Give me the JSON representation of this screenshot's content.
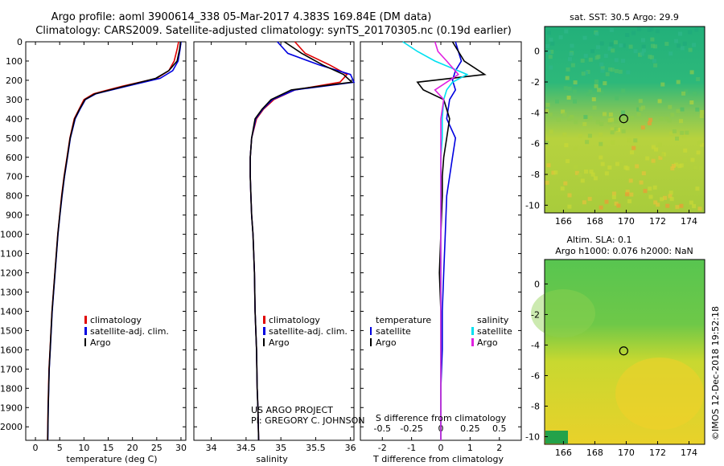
{
  "title_line1": "Argo profile: aoml 3900614_338 05-Mar-2017 4.383S 169.84E (DM data)",
  "title_line2": "Climatology: CARS2009. Satellite-adjusted climatology: synTS_20170305.nc (0.19d earlier)",
  "map_top_title": "sat. SST: 30.5 Argo: 29.9",
  "map_bottom_title1": "Altim. SLA: 0.1",
  "map_bottom_title2": "Argo h1000: 0.076 h2000: NaN",
  "credit_project": "US ARGO PROJECT",
  "credit_pi": "PI: GREGORY C. JOHNSON",
  "imos_stamp": "©IMOS 12-Dec-2018 19:52:18",
  "colors": {
    "climatology": "#e00000",
    "satellite": "#0000e0",
    "argo": "#000000",
    "sat_s": "#00e0f0",
    "argo_s": "#e020e0"
  },
  "chart_data": [
    {
      "type": "line",
      "xlabel": "temperature (deg C)",
      "xlim": [
        -2,
        31
      ],
      "ylim": [
        2070,
        0
      ],
      "xticks": [
        "0",
        "5",
        "10",
        "15",
        "20",
        "25",
        "30"
      ],
      "yticks": [
        "0",
        "100",
        "200",
        "300",
        "400",
        "500",
        "600",
        "700",
        "800",
        "900",
        "1000",
        "1100",
        "1200",
        "1300",
        "1400",
        "1500",
        "1600",
        "1700",
        "1800",
        "1900",
        "2000"
      ],
      "legend": [
        "climatology",
        "satellite-adj. clim.",
        "Argo"
      ],
      "series": [
        {
          "name": "climatology",
          "x": [
            29.5,
            29.2,
            28.6,
            27.5,
            25,
            18,
            12,
            10,
            9,
            8,
            7.1,
            6.5,
            5.9,
            5.4,
            5,
            4.6,
            4.3,
            4,
            3.7,
            3.4,
            3.2,
            3,
            2.8,
            2.7,
            2.6,
            2.5
          ],
          "y": [
            0,
            40,
            100,
            150,
            190,
            230,
            270,
            300,
            350,
            400,
            500,
            600,
            700,
            800,
            900,
            1000,
            1100,
            1200,
            1300,
            1400,
            1500,
            1600,
            1700,
            1800,
            1900,
            2070
          ]
        },
        {
          "name": "satellite-adj. clim.",
          "x": [
            30,
            29.8,
            29.4,
            28.3,
            25.7,
            19,
            12.5,
            10.3,
            9.2,
            8.2,
            7.2,
            6.6,
            6,
            5.5,
            5.05,
            4.65,
            4.35,
            4.05,
            3.75,
            3.45,
            3.25,
            3.05,
            2.85,
            2.75,
            2.65,
            2.55
          ],
          "y": [
            0,
            40,
            100,
            150,
            190,
            230,
            270,
            300,
            350,
            400,
            500,
            600,
            700,
            800,
            900,
            1000,
            1100,
            1200,
            1300,
            1400,
            1500,
            1600,
            1700,
            1800,
            1900,
            2070
          ]
        },
        {
          "name": "Argo",
          "x": [
            29.9,
            29.7,
            29.2,
            27.5,
            24.8,
            18.5,
            12.3,
            10.2,
            9.1,
            8.1,
            7.15,
            6.55,
            5.95,
            5.45,
            5.02,
            4.62,
            4.32,
            4.02,
            3.72,
            3.42,
            3.22,
            3.02,
            2.82,
            2.72,
            2.62,
            2.52
          ],
          "y": [
            0,
            40,
            100,
            150,
            190,
            230,
            270,
            300,
            350,
            400,
            500,
            600,
            700,
            800,
            900,
            1000,
            1100,
            1200,
            1300,
            1400,
            1500,
            1600,
            1700,
            1800,
            1900,
            2070
          ]
        }
      ]
    },
    {
      "type": "line",
      "xlabel": "salinity",
      "xlim": [
        33.75,
        36.05
      ],
      "ylim": [
        2070,
        0
      ],
      "xticks": [
        "34",
        "34.5",
        "35",
        "35.5",
        "36"
      ],
      "legend": [
        "climatology",
        "satellite-adj. clim.",
        "Argo"
      ],
      "series": [
        {
          "name": "climatology",
          "x": [
            35.2,
            35.35,
            35.7,
            35.95,
            35.85,
            35.2,
            34.9,
            34.75,
            34.65,
            34.58,
            34.56,
            34.56,
            34.57,
            34.58,
            34.6,
            34.62,
            34.63,
            34.65,
            34.66,
            34.67,
            34.68
          ],
          "y": [
            0,
            60,
            120,
            170,
            210,
            250,
            300,
            350,
            400,
            500,
            600,
            700,
            800,
            900,
            1000,
            1200,
            1400,
            1600,
            1800,
            1900,
            2070
          ]
        },
        {
          "name": "satellite-adj. clim.",
          "x": [
            34.95,
            35.1,
            35.55,
            36,
            36.05,
            35.2,
            34.88,
            34.74,
            34.64,
            34.58,
            34.56,
            34.56,
            34.57,
            34.58,
            34.6,
            34.62,
            34.63,
            34.65,
            34.66,
            34.67,
            34.68
          ],
          "y": [
            0,
            60,
            120,
            170,
            210,
            250,
            300,
            350,
            400,
            500,
            600,
            700,
            800,
            900,
            1000,
            1200,
            1400,
            1600,
            1800,
            1900,
            2070
          ]
        },
        {
          "name": "Argo",
          "x": [
            35.05,
            35.3,
            35.6,
            35.9,
            36.02,
            35.15,
            34.86,
            34.73,
            34.63,
            34.58,
            34.56,
            34.56,
            34.57,
            34.58,
            34.6,
            34.62,
            34.63,
            34.65,
            34.66,
            34.67,
            34.68
          ],
          "y": [
            0,
            60,
            120,
            170,
            210,
            250,
            300,
            350,
            400,
            500,
            600,
            700,
            800,
            900,
            1000,
            1200,
            1400,
            1600,
            1800,
            1900,
            2070
          ]
        }
      ]
    },
    {
      "type": "line",
      "xlabel": "T difference from climatology",
      "xlabel2": "S difference from climatology",
      "xlim": [
        -2.75,
        2.75
      ],
      "ylim": [
        2070,
        0
      ],
      "xticks": [
        "-2",
        "-1",
        "0",
        "1",
        "2"
      ],
      "xticks2": [
        "-0.5",
        "-0.25",
        "0",
        "0.25",
        "0.5"
      ],
      "legend_t_head": "temperature",
      "legend_s_head": "salinity",
      "legend_t": [
        "satellite",
        "Argo"
      ],
      "legend_s": [
        "satellite",
        "Argo"
      ],
      "series": [
        {
          "name": "T satellite",
          "x": [
            0.5,
            0.6,
            0.7,
            0.5,
            0.4,
            0.5,
            0.3,
            0.2,
            0.5,
            0.4,
            0.3,
            0.2,
            0.15,
            0.1,
            0.05,
            0.05,
            0,
            0
          ],
          "y": [
            0,
            50,
            100,
            150,
            200,
            250,
            300,
            400,
            500,
            600,
            700,
            800,
            1000,
            1200,
            1400,
            1600,
            1800,
            2070
          ]
        },
        {
          "name": "T Argo",
          "x": [
            0.4,
            0.6,
            0.8,
            1.5,
            -0.8,
            -0.6,
            0.1,
            0.3,
            0.2,
            0.1,
            0.05,
            0.05,
            0,
            -0.05,
            0,
            0,
            0,
            0
          ],
          "y": [
            0,
            50,
            100,
            170,
            210,
            250,
            300,
            400,
            500,
            600,
            700,
            800,
            1000,
            1200,
            1400,
            1600,
            1800,
            2070
          ]
        },
        {
          "name": "S satellite",
          "x": [
            -1.3,
            -0.8,
            -0.2,
            0.9,
            0.4,
            0.2,
            0.1,
            0.05,
            0.05,
            0,
            0,
            0,
            0,
            0,
            0,
            0,
            0,
            0
          ],
          "y": [
            0,
            50,
            100,
            170,
            210,
            250,
            300,
            400,
            500,
            600,
            700,
            800,
            1000,
            1200,
            1400,
            1600,
            1800,
            2070
          ]
        },
        {
          "name": "S Argo",
          "x": [
            -0.2,
            -0.1,
            0.2,
            0.6,
            0.2,
            -0.2,
            0.1,
            0,
            0,
            0,
            0,
            0,
            0,
            0,
            0,
            0,
            0,
            0
          ],
          "y": [
            0,
            50,
            100,
            170,
            210,
            250,
            300,
            400,
            500,
            600,
            700,
            800,
            1000,
            1200,
            1400,
            1600,
            1800,
            2070
          ]
        }
      ]
    },
    {
      "type": "heatmap",
      "title": "sat. SST: 30.5 Argo: 29.9",
      "xlim": [
        164.8,
        175
      ],
      "ylim": [
        -10.5,
        1.6
      ],
      "xticks": [
        "166",
        "168",
        "170",
        "172",
        "174"
      ],
      "yticks": [
        "0",
        "-2",
        "-4",
        "-6",
        "-8",
        "-10"
      ],
      "marker": {
        "lon": 169.84,
        "lat": -4.383
      }
    },
    {
      "type": "heatmap",
      "title": "Altim. SLA: 0.1",
      "xlim": [
        164.8,
        175
      ],
      "ylim": [
        -10.5,
        1.6
      ],
      "xticks": [
        "166",
        "168",
        "170",
        "172",
        "174"
      ],
      "yticks": [
        "0",
        "-2",
        "-4",
        "-6",
        "-8",
        "-10"
      ],
      "marker": {
        "lon": 169.84,
        "lat": -4.383
      }
    }
  ]
}
